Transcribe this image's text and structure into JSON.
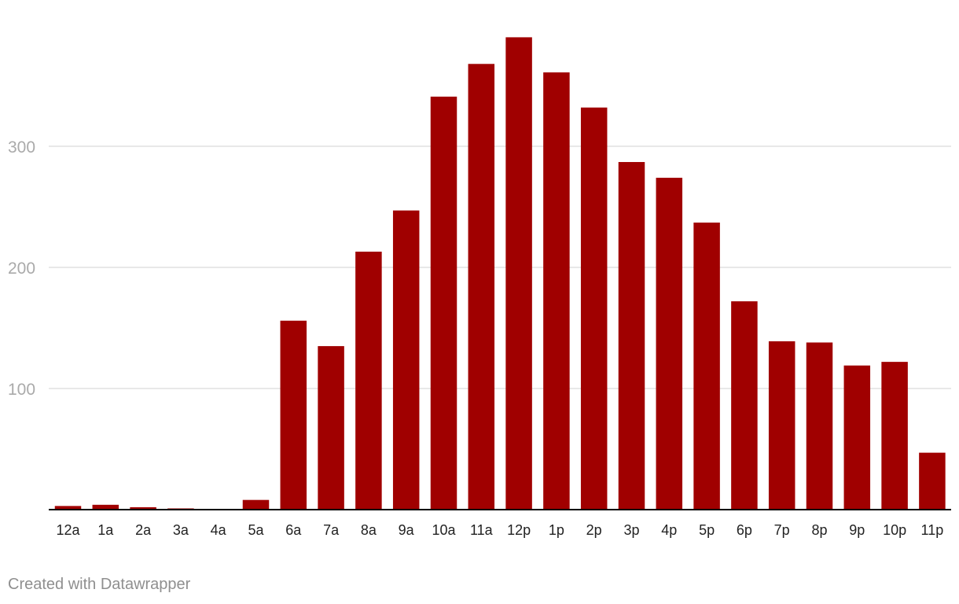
{
  "chart_data": {
    "type": "bar",
    "categories": [
      "12a",
      "1a",
      "2a",
      "3a",
      "4a",
      "5a",
      "6a",
      "7a",
      "8a",
      "9a",
      "10a",
      "11a",
      "12p",
      "1p",
      "2p",
      "3p",
      "4p",
      "5p",
      "6p",
      "7p",
      "8p",
      "9p",
      "10p",
      "11p"
    ],
    "values": [
      3,
      4,
      2,
      1,
      0,
      8,
      156,
      135,
      213,
      247,
      341,
      368,
      390,
      361,
      332,
      287,
      274,
      237,
      172,
      139,
      138,
      119,
      122,
      47
    ],
    "y_ticks": [
      100,
      200,
      300
    ],
    "ylim": [
      0,
      400
    ],
    "grid": true,
    "bar_color": "#a00000",
    "gridline_color": "#e1e1e1",
    "axis_color": "#000000",
    "ytick_color": "#aaaaaa",
    "xtick_color": "#222222"
  },
  "footer": {
    "credit": "Created with Datawrapper"
  }
}
